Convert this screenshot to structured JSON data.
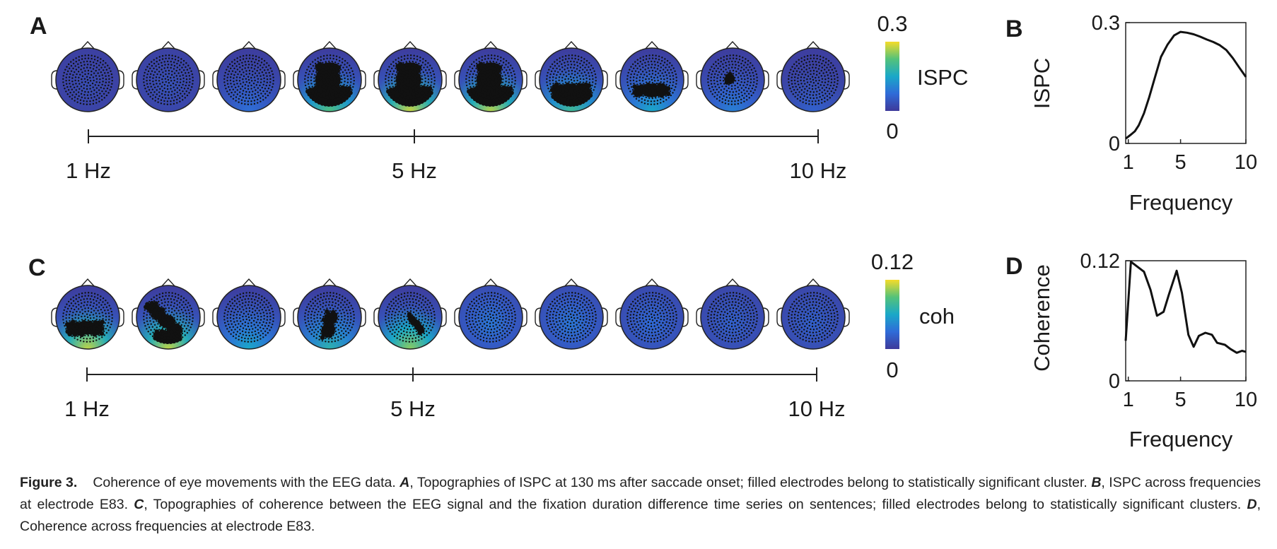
{
  "panels": {
    "A": {
      "letter": "A",
      "colorbar": {
        "max_label": "0.3",
        "min_label": "0",
        "label": "ISPC"
      },
      "axis_labels": {
        "left": "1 Hz",
        "mid": "5 Hz",
        "right": "10 Hz"
      },
      "topomaps": [
        {
          "freq": 1,
          "pattern": "uniform",
          "level": 0.02,
          "cluster": "none"
        },
        {
          "freq": 2,
          "pattern": "uniform",
          "level": 0.03,
          "cluster": "none"
        },
        {
          "freq": 3,
          "pattern": "posterior",
          "level": 0.08,
          "cluster": "none"
        },
        {
          "freq": 4,
          "pattern": "posterior",
          "level": 0.22,
          "cluster": "large"
        },
        {
          "freq": 5,
          "pattern": "posterior",
          "level": 0.28,
          "cluster": "large"
        },
        {
          "freq": 6,
          "pattern": "posterior",
          "level": 0.27,
          "cluster": "large"
        },
        {
          "freq": 7,
          "pattern": "posterior",
          "level": 0.2,
          "cluster": "medium"
        },
        {
          "freq": 8,
          "pattern": "posterior",
          "level": 0.15,
          "cluster": "band"
        },
        {
          "freq": 9,
          "pattern": "posterior",
          "level": 0.1,
          "cluster": "small"
        },
        {
          "freq": 10,
          "pattern": "posterior",
          "level": 0.06,
          "cluster": "none"
        }
      ]
    },
    "B": {
      "letter": "B",
      "ylabel": "ISPC",
      "xlabel": "Frequency"
    },
    "C": {
      "letter": "C",
      "colorbar": {
        "max_label": "0.12",
        "min_label": "0",
        "label": "coh"
      },
      "axis_labels": {
        "left": "1 Hz",
        "mid": "5 Hz",
        "right": "10 Hz"
      },
      "topomaps": [
        {
          "freq": 1,
          "pattern": "posterior",
          "level": 0.11,
          "cluster": "left-band"
        },
        {
          "freq": 2,
          "pattern": "posterior",
          "level": 0.11,
          "cluster": "left-diagonal"
        },
        {
          "freq": 3,
          "pattern": "posterior",
          "level": 0.06,
          "cluster": "none"
        },
        {
          "freq": 4,
          "pattern": "posterior",
          "level": 0.07,
          "cluster": "center-small"
        },
        {
          "freq": 5,
          "pattern": "posterior",
          "level": 0.1,
          "cluster": "right-diagonal"
        },
        {
          "freq": 6,
          "pattern": "uniform",
          "level": 0.03,
          "cluster": "none"
        },
        {
          "freq": 7,
          "pattern": "uniform",
          "level": 0.03,
          "cluster": "none"
        },
        {
          "freq": 8,
          "pattern": "uniform",
          "level": 0.025,
          "cluster": "none"
        },
        {
          "freq": 9,
          "pattern": "uniform",
          "level": 0.02,
          "cluster": "none"
        },
        {
          "freq": 10,
          "pattern": "uniform",
          "level": 0.02,
          "cluster": "none"
        }
      ]
    },
    "D": {
      "letter": "D",
      "ylabel": "Coherence",
      "xlabel": "Frequency"
    }
  },
  "chart_data": [
    {
      "type": "line",
      "panel": "B",
      "xlabel": "Frequency",
      "ylabel": "ISPC",
      "xlim": [
        0.8,
        10
      ],
      "ylim": [
        0,
        0.3
      ],
      "xticks": [
        1,
        5,
        10
      ],
      "xtick_labels": [
        "1",
        "5",
        "10"
      ],
      "yticks": [
        0,
        0.3
      ],
      "ytick_labels": [
        "0",
        "0.3"
      ],
      "grid": false,
      "x": [
        0.8,
        1.2,
        1.5,
        1.8,
        2.2,
        2.6,
        3.0,
        3.5,
        4.0,
        4.5,
        5.0,
        5.5,
        6.0,
        6.5,
        7.0,
        7.5,
        8.0,
        8.5,
        9.0,
        9.5,
        10.0
      ],
      "series": [
        {
          "values": [
            0.012,
            0.022,
            0.03,
            0.045,
            0.075,
            0.115,
            0.16,
            0.215,
            0.245,
            0.268,
            0.277,
            0.275,
            0.271,
            0.265,
            0.258,
            0.252,
            0.244,
            0.232,
            0.212,
            0.188,
            0.165
          ]
        }
      ]
    },
    {
      "type": "line",
      "panel": "D",
      "xlabel": "Frequency",
      "ylabel": "Coherence",
      "xlim": [
        0.8,
        10
      ],
      "ylim": [
        0,
        0.12
      ],
      "xticks": [
        1,
        5,
        10
      ],
      "xtick_labels": [
        "1",
        "5",
        "10"
      ],
      "yticks": [
        0,
        0.12
      ],
      "ytick_labels": [
        "0",
        "0.12"
      ],
      "grid": false,
      "x": [
        0.8,
        1.2,
        1.8,
        2.2,
        2.7,
        3.2,
        3.7,
        4.1,
        4.7,
        5.1,
        5.6,
        6.0,
        6.4,
        6.9,
        7.4,
        7.8,
        8.4,
        8.8,
        9.3,
        9.7,
        10.0
      ],
      "series": [
        {
          "values": [
            0.04,
            0.119,
            0.113,
            0.109,
            0.091,
            0.065,
            0.069,
            0.086,
            0.11,
            0.088,
            0.046,
            0.034,
            0.045,
            0.048,
            0.046,
            0.038,
            0.036,
            0.032,
            0.028,
            0.03,
            0.029
          ]
        }
      ]
    }
  ],
  "caption": {
    "figure_label": "Figure 3.",
    "intro": "Coherence of eye movements with the EEG data.",
    "a_letter": "A",
    "a_text": ", Topographies of ISPC at 130 ms after saccade onset; filled electrodes belong to statistically significant cluster.",
    "b_letter": "B",
    "b_text": ", ISPC across frequencies at electrode E83.",
    "c_letter": "C",
    "c_text": ", Topographies of coherence between the EEG signal and the fixation duration difference time series on sentences; filled electrodes belong to statistically significant clusters.",
    "d_letter": "D",
    "d_text": ", Coherence across frequencies at electrode E83."
  },
  "colors": {
    "parula_low": "#3e3a9a",
    "parula_mid_low": "#2f6bd8",
    "parula_mid": "#1aa8c8",
    "parula_mid_high": "#54c27a",
    "parula_high": "#f5dc2a",
    "line": "#111111"
  }
}
